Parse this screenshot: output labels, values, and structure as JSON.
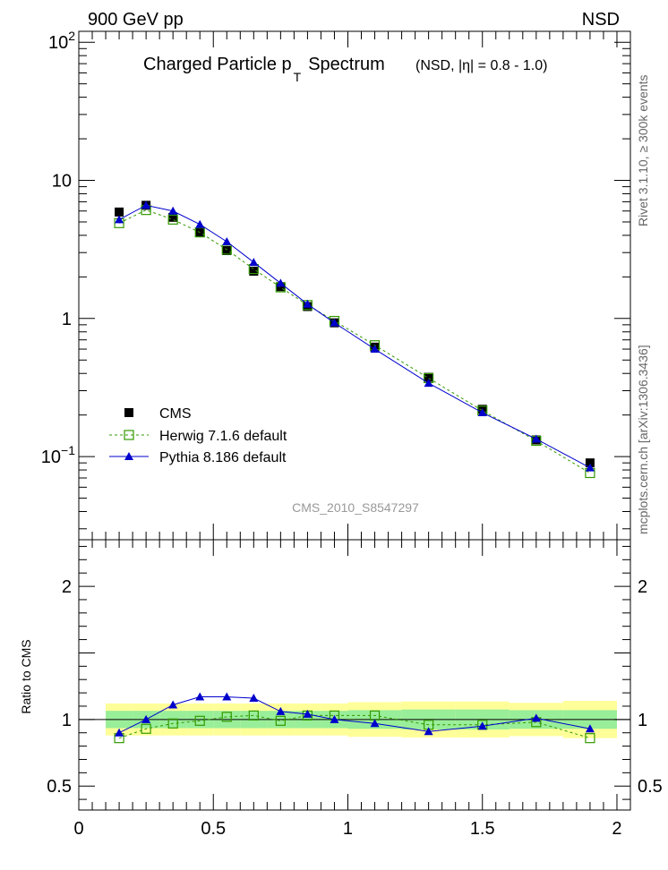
{
  "header": {
    "left_label": "900 GeV pp",
    "right_label": "NSD"
  },
  "side_labels": {
    "rivet": "Rivet 3.1.10, ≥ 300k events",
    "mcplots": "mcplots.cern.ch [arXiv:1306.3436]"
  },
  "chart_data": {
    "type": "line",
    "title": "Charged Particle p T Spectrum",
    "title_main": "Charged Particle p",
    "title_sub": "T",
    "title_after": "Spectrum",
    "subtitle": "(NSD, |η| = 0.8 - 1.0)",
    "watermark": "CMS_2010_S8547297",
    "xlabel": "",
    "xlim": [
      0,
      2.05
    ],
    "x_ticks": [
      "0",
      "0.5",
      "1",
      "1.5",
      "2"
    ],
    "main_panel": {
      "yscale": "log",
      "ylim": [
        0.025,
        120
      ],
      "y_ticks": [
        "10⁻¹",
        "1",
        "10",
        "10²"
      ],
      "legend_position": "bottom-left",
      "series": [
        {
          "name": "CMS",
          "style": "black-square-markers",
          "color": "#000000",
          "x": [
            0.15,
            0.25,
            0.35,
            0.45,
            0.55,
            0.65,
            0.75,
            0.85,
            0.95,
            1.1,
            1.3,
            1.5,
            1.7,
            1.9
          ],
          "y": [
            5.9,
            6.6,
            5.4,
            4.2,
            3.1,
            2.2,
            1.7,
            1.22,
            0.93,
            0.62,
            0.375,
            0.22,
            0.132,
            0.09
          ]
        },
        {
          "name": "Herwig 7.1.6 default",
          "style": "green-dashed-open-squares",
          "color": "#339900",
          "x": [
            0.15,
            0.25,
            0.35,
            0.45,
            0.55,
            0.65,
            0.75,
            0.85,
            0.95,
            1.1,
            1.3,
            1.5,
            1.7,
            1.9
          ],
          "y": [
            4.9,
            6.1,
            5.2,
            4.2,
            3.15,
            2.28,
            1.68,
            1.25,
            0.96,
            0.64,
            0.37,
            0.215,
            0.13,
            0.076
          ]
        },
        {
          "name": "Pythia 8.186 default",
          "style": "blue-solid-triangles",
          "color": "#0000cc",
          "x": [
            0.15,
            0.25,
            0.35,
            0.45,
            0.55,
            0.65,
            0.75,
            0.85,
            0.95,
            1.1,
            1.3,
            1.5,
            1.7,
            1.9
          ],
          "y": [
            5.2,
            6.6,
            6.0,
            4.8,
            3.6,
            2.55,
            1.8,
            1.27,
            0.93,
            0.6,
            0.34,
            0.208,
            0.134,
            0.083
          ]
        }
      ]
    },
    "ratio_panel": {
      "ylabel": "Ratio to CMS",
      "ylim": [
        0.32,
        2.35
      ],
      "y_ticks": [
        "0.5",
        "1",
        "2"
      ],
      "bands": {
        "bin_edges": [
          0.1,
          0.2,
          0.3,
          0.4,
          0.5,
          0.6,
          0.7,
          0.8,
          0.9,
          1.0,
          1.2,
          1.4,
          1.6,
          1.8,
          2.0
        ],
        "inner_half_width": [
          0.065,
          0.065,
          0.065,
          0.065,
          0.065,
          0.065,
          0.065,
          0.065,
          0.065,
          0.07,
          0.075,
          0.075,
          0.07,
          0.07
        ],
        "outer_half_width": [
          0.12,
          0.12,
          0.12,
          0.12,
          0.12,
          0.12,
          0.12,
          0.12,
          0.12,
          0.13,
          0.135,
          0.135,
          0.125,
          0.14
        ],
        "inner_color": "#99ee99",
        "outer_color": "#ffff99"
      },
      "series": [
        {
          "name": "Herwig 7.1.6 default",
          "color": "#339900",
          "x": [
            0.15,
            0.25,
            0.35,
            0.45,
            0.55,
            0.65,
            0.75,
            0.85,
            0.95,
            1.1,
            1.3,
            1.5,
            1.7,
            1.9
          ],
          "y": [
            0.86,
            0.93,
            0.97,
            0.99,
            1.02,
            1.03,
            0.99,
            1.03,
            1.03,
            1.03,
            0.96,
            0.96,
            0.98,
            0.86
          ]
        },
        {
          "name": "Pythia 8.186 default",
          "color": "#0000cc",
          "x": [
            0.15,
            0.25,
            0.35,
            0.45,
            0.55,
            0.65,
            0.75,
            0.85,
            0.95,
            1.1,
            1.3,
            1.5,
            1.7,
            1.9
          ],
          "y": [
            0.9,
            1.0,
            1.11,
            1.17,
            1.17,
            1.16,
            1.06,
            1.04,
            1.0,
            0.97,
            0.91,
            0.95,
            1.01,
            0.93
          ]
        }
      ]
    }
  }
}
